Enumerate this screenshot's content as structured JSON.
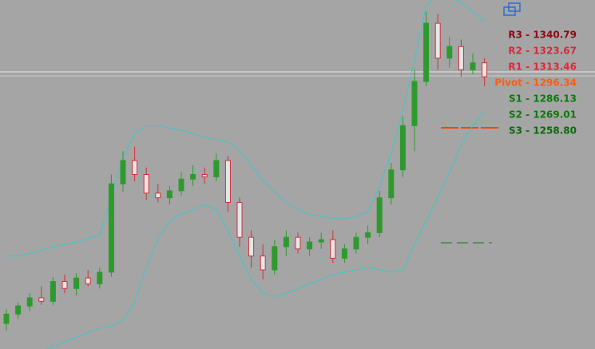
{
  "chart_data": {
    "type": "candlestick",
    "ylim": [
      1070,
      1370
    ],
    "up_color": "#2e9a2e",
    "down_color": "#d0303a",
    "band_color": "#3fc7c7",
    "candles": [
      [
        1092,
        1104,
        1086,
        1100
      ],
      [
        1100,
        1110,
        1096,
        1107
      ],
      [
        1107,
        1118,
        1103,
        1114
      ],
      [
        1114,
        1124,
        1108,
        1111
      ],
      [
        1111,
        1132,
        1108,
        1128
      ],
      [
        1128,
        1134,
        1118,
        1122
      ],
      [
        1122,
        1135,
        1116,
        1131
      ],
      [
        1131,
        1138,
        1124,
        1126
      ],
      [
        1126,
        1140,
        1122,
        1136
      ],
      [
        1136,
        1220,
        1132,
        1212
      ],
      [
        1212,
        1240,
        1205,
        1232
      ],
      [
        1232,
        1244,
        1214,
        1220
      ],
      [
        1220,
        1226,
        1198,
        1204
      ],
      [
        1204,
        1212,
        1196,
        1200
      ],
      [
        1200,
        1210,
        1194,
        1206
      ],
      [
        1206,
        1222,
        1202,
        1216
      ],
      [
        1216,
        1228,
        1210,
        1220
      ],
      [
        1220,
        1226,
        1212,
        1218
      ],
      [
        1218,
        1238,
        1214,
        1232
      ],
      [
        1232,
        1236,
        1188,
        1196
      ],
      [
        1196,
        1200,
        1158,
        1166
      ],
      [
        1166,
        1172,
        1140,
        1150
      ],
      [
        1150,
        1160,
        1130,
        1138
      ],
      [
        1138,
        1164,
        1134,
        1158
      ],
      [
        1158,
        1172,
        1150,
        1166
      ],
      [
        1166,
        1170,
        1152,
        1156
      ],
      [
        1156,
        1166,
        1150,
        1162
      ],
      [
        1162,
        1170,
        1156,
        1164
      ],
      [
        1164,
        1172,
        1144,
        1148
      ],
      [
        1148,
        1160,
        1144,
        1156
      ],
      [
        1156,
        1170,
        1152,
        1166
      ],
      [
        1166,
        1176,
        1160,
        1170
      ],
      [
        1170,
        1206,
        1166,
        1200
      ],
      [
        1200,
        1230,
        1194,
        1224
      ],
      [
        1224,
        1270,
        1218,
        1262
      ],
      [
        1262,
        1310,
        1240,
        1300
      ],
      [
        1300,
        1360,
        1296,
        1350
      ],
      [
        1350,
        1358,
        1310,
        1320
      ],
      [
        1320,
        1338,
        1312,
        1330
      ],
      [
        1330,
        1336,
        1304,
        1310
      ],
      [
        1310,
        1324,
        1306,
        1316
      ],
      [
        1316,
        1320,
        1296,
        1304
      ]
    ],
    "upper_band": [
      1150,
      1150,
      1152,
      1155,
      1158,
      1160,
      1162,
      1165,
      1168,
      1200,
      1235,
      1255,
      1262,
      1262,
      1260,
      1258,
      1255,
      1252,
      1250,
      1248,
      1240,
      1228,
      1215,
      1205,
      1196,
      1190,
      1186,
      1184,
      1182,
      1182,
      1184,
      1188,
      1210,
      1238,
      1275,
      1318,
      1365,
      1375,
      1372,
      1368,
      1360,
      1352
    ],
    "lower_band": [
      1060,
      1062,
      1065,
      1068,
      1072,
      1076,
      1080,
      1084,
      1088,
      1090,
      1095,
      1110,
      1140,
      1165,
      1180,
      1186,
      1190,
      1194,
      1190,
      1172,
      1150,
      1130,
      1118,
      1115,
      1118,
      1122,
      1126,
      1130,
      1134,
      1136,
      1138,
      1140,
      1138,
      1136,
      1138,
      1160,
      1180,
      1200,
      1222,
      1245,
      1262,
      1275
    ],
    "levels": [
      {
        "label": "R3 - 1340.79",
        "value": 1340.79,
        "color": "#8b0a14"
      },
      {
        "label": "R2 - 1323.67",
        "value": 1323.67,
        "color": "#d42a3c"
      },
      {
        "label": "R1 - 1313.46",
        "value": 1313.46,
        "color": "#e0283a"
      },
      {
        "label": "Pivot - 1296.34",
        "value": 1296.34,
        "color": "#ff5a10"
      },
      {
        "label": "S1 - 1286.13",
        "value": 1286.13,
        "color": "#0a7a0a"
      },
      {
        "label": "S2 - 1269.01",
        "value": 1269.01,
        "color": "#0a7a0a"
      },
      {
        "label": "S3 - 1258.80",
        "value": 1258.8,
        "color": "#0a6a0a"
      }
    ]
  }
}
